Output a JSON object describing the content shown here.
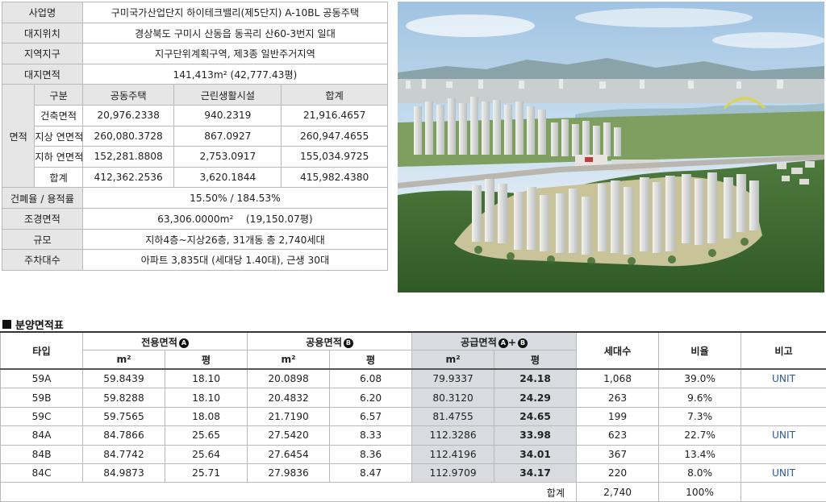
{
  "overview": {
    "project_label": "사업명",
    "project_value": "구미국가산업단지 하이테크밸리(제5단지) A-10BL 공동주택",
    "location_label": "대지위치",
    "location_value": "경상북도 구미시 산동읍 동곡리 산60-3번지 일대",
    "zone_label": "지역지구",
    "zone_value": "지구단위계획구역, 제3종 일반주거지역",
    "site_area_label": "대지면적",
    "site_area_value": "141,413m² (42,777.43평)",
    "area_label": "면적",
    "area_headers": [
      "구분",
      "공동주택",
      "근린생활시설",
      "합계"
    ],
    "area_rows": [
      {
        "label": "건축면적",
        "values": [
          "20,976.2338",
          "940.2319",
          "21,916.4657"
        ]
      },
      {
        "label": "지상 연면적",
        "values": [
          "260,080.3728",
          "867.0927",
          "260,947.4655"
        ]
      },
      {
        "label": "지하 연면적",
        "values": [
          "152,281.8808",
          "2,753.0917",
          "155,034.9725"
        ]
      },
      {
        "label": "합계",
        "values": [
          "412,362.2536",
          "3,620.1844",
          "415,982.4380"
        ]
      }
    ],
    "coverage_label": "건폐율 / 용적률",
    "coverage_value": "15.50% / 184.53%",
    "landscape_label": "조경면적",
    "landscape_value": "63,306.0000m²    (19,150.07평)",
    "scale_label": "규모",
    "scale_value": "지하4층~지상26층, 31개동 총 2,740세대",
    "parking_label": "주차대수",
    "parking_value": "아파트 3,835대 (세대당 1.40대), 근생 30대"
  },
  "section_title": "분양면적표",
  "sales_table": {
    "type_header": "타입",
    "exclusive_header": "전용면적",
    "exclusive_badge": "A",
    "common_header": "공용면적",
    "common_badge": "B",
    "supply_header": "공급면적",
    "supply_badge_a": "A",
    "supply_plus": "+",
    "supply_badge_b": "B",
    "households_header": "세대수",
    "ratio_header": "비율",
    "note_header": "비고",
    "unit_m2": "m²",
    "unit_pyeong": "평",
    "rows": [
      {
        "type": "59A",
        "ex_m2": "59.8439",
        "ex_py": "18.10",
        "co_m2": "20.0898",
        "co_py": "6.08",
        "su_m2": "79.9337",
        "su_py": "24.18",
        "households": "1,068",
        "ratio": "39.0%",
        "note": "UNIT"
      },
      {
        "type": "59B",
        "ex_m2": "59.8288",
        "ex_py": "18.10",
        "co_m2": "20.4832",
        "co_py": "6.20",
        "su_m2": "80.3120",
        "su_py": "24.29",
        "households": "263",
        "ratio": "9.6%",
        "note": ""
      },
      {
        "type": "59C",
        "ex_m2": "59.7565",
        "ex_py": "18.08",
        "co_m2": "21.7190",
        "co_py": "6.57",
        "su_m2": "81.4755",
        "su_py": "24.65",
        "households": "199",
        "ratio": "7.3%",
        "note": ""
      },
      {
        "type": "84A",
        "ex_m2": "84.7866",
        "ex_py": "25.65",
        "co_m2": "27.5420",
        "co_py": "8.33",
        "su_m2": "112.3286",
        "su_py": "33.98",
        "households": "623",
        "ratio": "22.7%",
        "note": "UNIT"
      },
      {
        "type": "84B",
        "ex_m2": "84.7742",
        "ex_py": "25.64",
        "co_m2": "27.6454",
        "co_py": "8.36",
        "su_m2": "112.4196",
        "su_py": "34.01",
        "households": "367",
        "ratio": "13.4%",
        "note": ""
      },
      {
        "type": "84C",
        "ex_m2": "84.9873",
        "ex_py": "25.71",
        "co_m2": "27.9836",
        "co_py": "8.47",
        "su_m2": "112.9709",
        "su_py": "34.17",
        "households": "220",
        "ratio": "8.0%",
        "note": "UNIT"
      }
    ],
    "total_label": "합계",
    "total_households": "2,740",
    "total_ratio": "100%"
  },
  "colors": {
    "label_bg": "#e6e6e6",
    "supply_bg": "#dadbe0",
    "unit_link": "#2c5c9a",
    "border": "#b9b9b9"
  }
}
